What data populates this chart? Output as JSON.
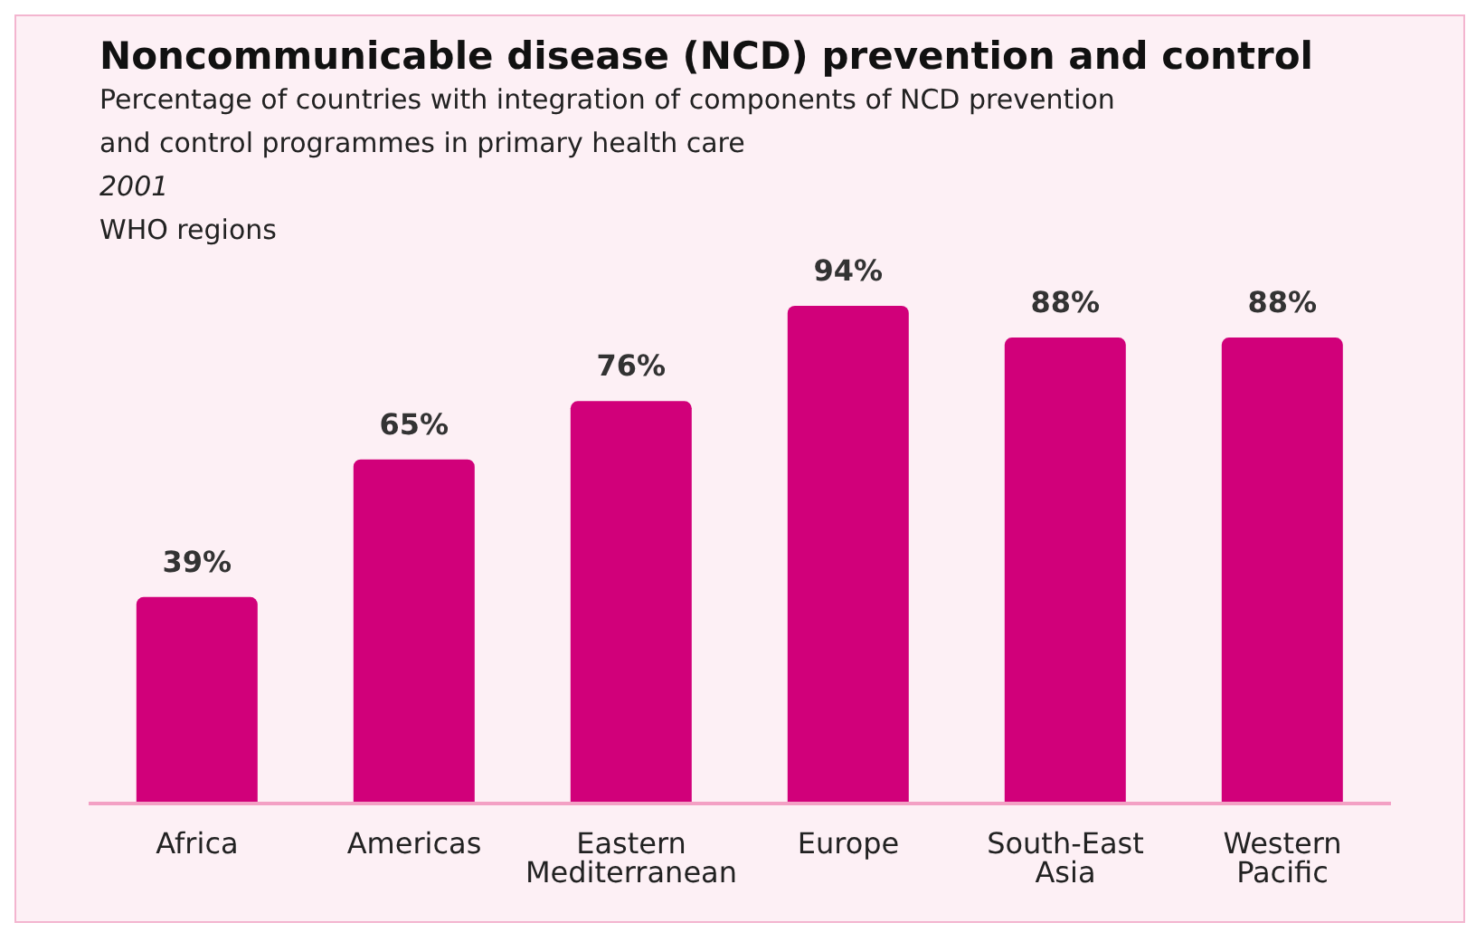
{
  "chart_data": {
    "type": "bar",
    "title": "Noncommunicable disease (NCD) prevention and control",
    "subtitle": "Percentage of countries with integration of components of NCD prevention and control programmes in primary health care",
    "annotations": [
      "2001",
      "WHO regions"
    ],
    "categories": [
      "Africa",
      "Americas",
      "Eastern Mediterranean",
      "Europe",
      "South-East Asia",
      "Western Pacific"
    ],
    "values": [
      39,
      65,
      76,
      94,
      88,
      88
    ],
    "value_labels": [
      "39%",
      "65%",
      "76%",
      "94%",
      "88%",
      "88%"
    ],
    "color": "#d1007a",
    "grid": false,
    "legend": false
  }
}
